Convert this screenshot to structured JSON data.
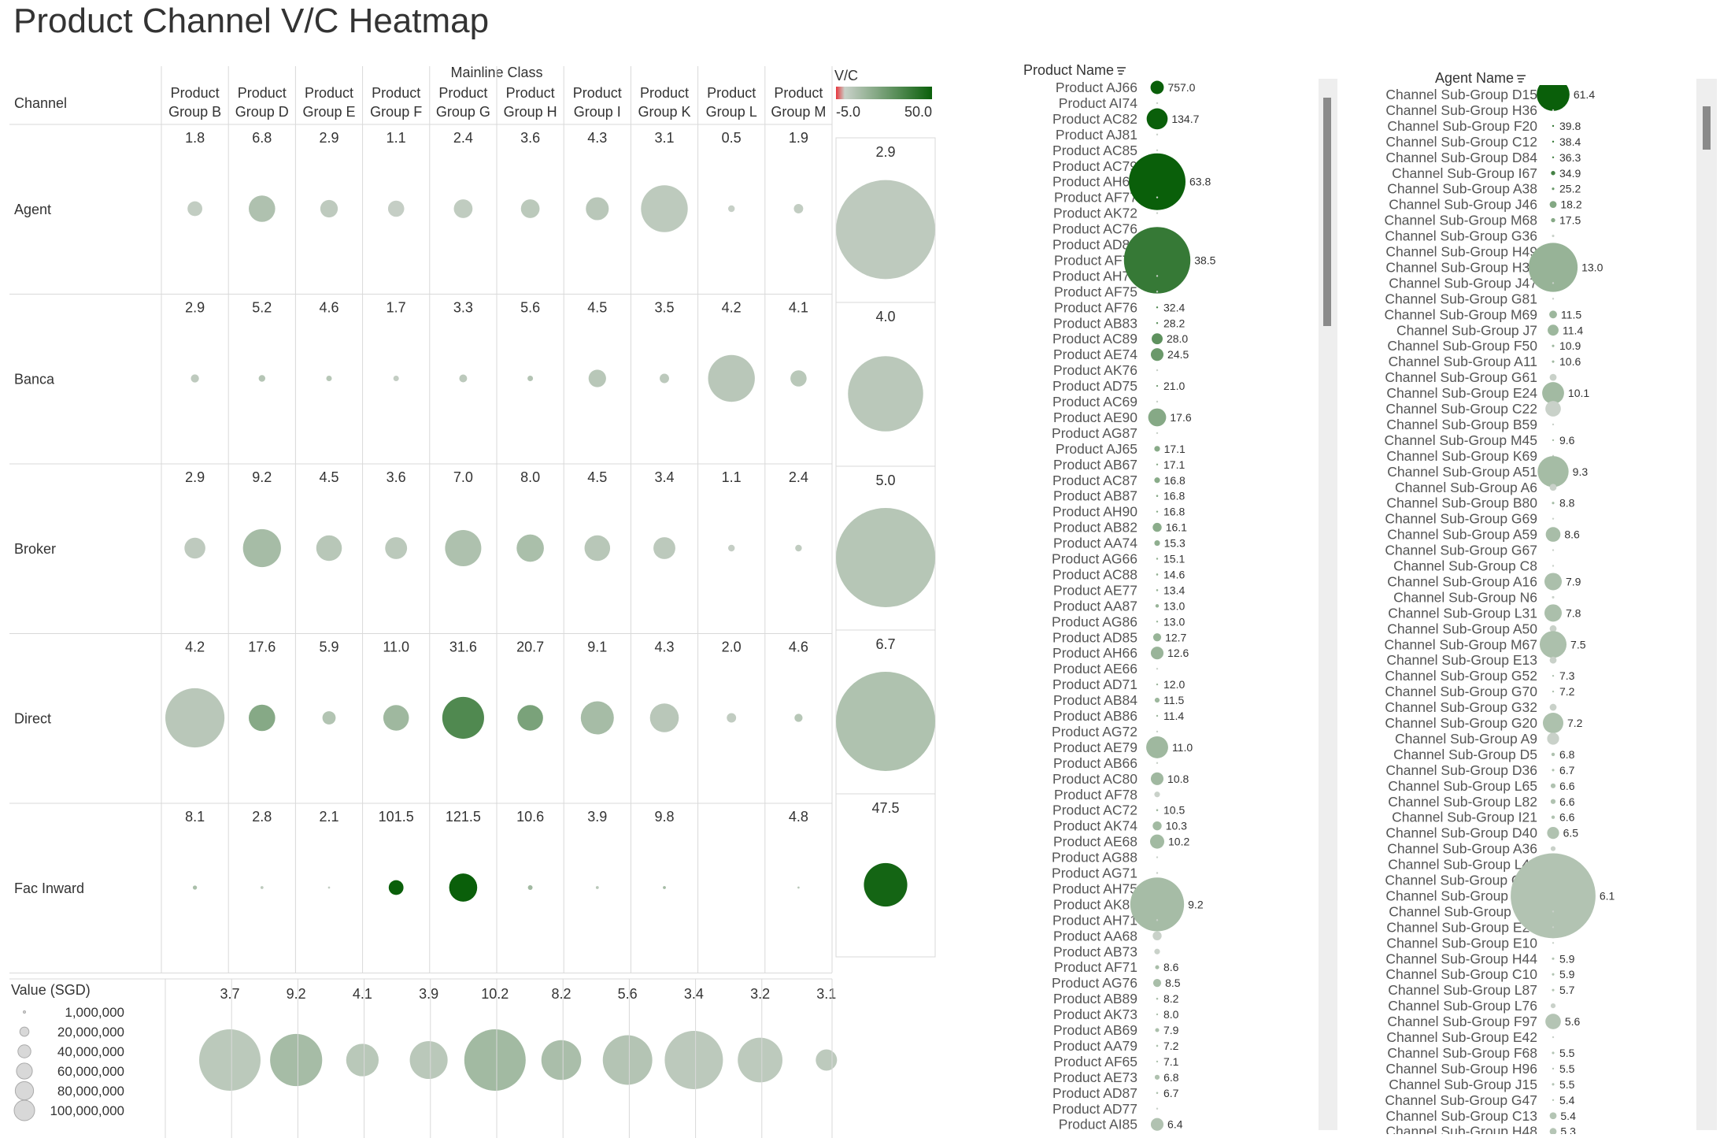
{
  "title": "Product Channel V/C Heatmap",
  "colors": {
    "negative": "#e8343c",
    "neutral": "#c9d1c9",
    "positive": "#0a5f0a",
    "grid": "#d9d9d9",
    "text": "#333333"
  },
  "chart_data": [
    {
      "type": "bubble-heatmap",
      "name": "channel-by-mainline-class",
      "column_header": "Mainline Class",
      "row_header": "Channel",
      "columns": [
        "Product Group B",
        "Product Group D",
        "Product Group E",
        "Product Group F",
        "Product Group G",
        "Product Group H",
        "Product Group I",
        "Product Group K",
        "Product Group L",
        "Product Group M"
      ],
      "rows": [
        "Agent",
        "Banca",
        "Broker",
        "Direct",
        "Fac Inward"
      ],
      "vc": [
        [
          1.8,
          6.8,
          2.9,
          1.1,
          2.4,
          3.6,
          4.3,
          3.1,
          0.5,
          1.9
        ],
        [
          2.9,
          5.2,
          4.6,
          1.7,
          3.3,
          5.6,
          4.5,
          3.5,
          4.2,
          4.1
        ],
        [
          2.9,
          9.2,
          4.5,
          3.6,
          7.0,
          8.0,
          4.5,
          3.4,
          1.1,
          2.4
        ],
        [
          4.2,
          17.6,
          5.9,
          11.0,
          31.6,
          20.7,
          9.1,
          4.3,
          2.0,
          4.6
        ],
        [
          8.1,
          2.8,
          2.1,
          101.5,
          121.5,
          10.6,
          3.9,
          9.8,
          null,
          4.8
        ]
      ],
      "value_sgd": [
        [
          5000000,
          16000000,
          7000000,
          6000000,
          8000000,
          8000000,
          12000000,
          50000000,
          1000000,
          2000000
        ],
        [
          1500000,
          1000000,
          700000,
          700000,
          1400000,
          700000,
          7000000,
          2000000,
          50000000,
          6000000
        ],
        [
          10000000,
          33000000,
          15000000,
          11000000,
          30000000,
          17000000,
          15000000,
          11000000,
          1000000,
          1000000
        ],
        [
          80000000,
          16000000,
          4000000,
          15000000,
          40000000,
          15000000,
          25000000,
          19000000,
          2000000,
          1500000
        ],
        [
          400000,
          200000,
          100000,
          5000000,
          18000000,
          500000,
          200000,
          200000,
          null,
          100000
        ]
      ],
      "row_totals": {
        "vc": [
          2.9,
          4.0,
          5.0,
          6.7,
          47.5
        ],
        "value_sgd": [
          260000000,
          150000000,
          330000000,
          460000000,
          50000000
        ]
      },
      "column_totals": {
        "vc": [
          3.7,
          9.2,
          4.1,
          3.9,
          10.2,
          8.2,
          5.6,
          3.4,
          3.2,
          3.1
        ],
        "value_sgd": [
          100000000,
          72000000,
          28000000,
          38000000,
          100000000,
          42000000,
          65000000,
          90000000,
          53000000,
          12000000
        ]
      },
      "color_legend": {
        "title": "V/C",
        "min": -5.0,
        "max": 50.0,
        "min_label": "-5.0",
        "max_label": "50.0"
      },
      "size_legend": {
        "title": "Value (SGD)",
        "values": [
          1000000,
          20000000,
          40000000,
          60000000,
          80000000,
          100000000
        ],
        "labels": [
          "1,000,000",
          "20,000,000",
          "40,000,000",
          "60,000,000",
          "80,000,000",
          "100,000,000"
        ]
      }
    },
    {
      "type": "bubble-list",
      "name": "product-name",
      "header": "Product Name",
      "items": [
        {
          "label": "Product AJ66",
          "vc": 757.0,
          "size": 22000000
        },
        {
          "label": "Product AI74",
          "vc": null,
          "size": 100000
        },
        {
          "label": "Product AC82",
          "vc": 134.7,
          "size": 55000000
        },
        {
          "label": "Product AJ81",
          "vc": null,
          "size": 100000
        },
        {
          "label": "Product AC85",
          "vc": null,
          "size": 100000
        },
        {
          "label": "Product AC79",
          "vc": null,
          "size": 100000
        },
        {
          "label": "Product AH68",
          "vc": 63.8,
          "size": 400000000
        },
        {
          "label": "Product AF77",
          "vc": null,
          "size": 100000
        },
        {
          "label": "Product AK72",
          "vc": null,
          "size": 100000
        },
        {
          "label": "Product AC76",
          "vc": null,
          "size": 100000
        },
        {
          "label": "Product AD80",
          "vc": null,
          "size": 100000
        },
        {
          "label": "Product AF79",
          "vc": 38.5,
          "size": 550000000
        },
        {
          "label": "Product AH70",
          "vc": null,
          "size": 100000
        },
        {
          "label": "Product AF75",
          "vc": null,
          "size": 100000
        },
        {
          "label": "Product AF76",
          "vc": 32.4,
          "size": 200000
        },
        {
          "label": "Product AB83",
          "vc": 28.2,
          "size": 100000
        },
        {
          "label": "Product AC89",
          "vc": 28.0,
          "size": 15000000
        },
        {
          "label": "Product AE74",
          "vc": 24.5,
          "size": 20000000
        },
        {
          "label": "Product AK76",
          "vc": null,
          "size": 100000
        },
        {
          "label": "Product AD75",
          "vc": 21.0,
          "size": 100000
        },
        {
          "label": "Product AC69",
          "vc": null,
          "size": 100000
        },
        {
          "label": "Product AE90",
          "vc": 17.6,
          "size": 40000000
        },
        {
          "label": "Product AG87",
          "vc": null,
          "size": 100000
        },
        {
          "label": "Product AJ65",
          "vc": 17.1,
          "size": 4000000
        },
        {
          "label": "Product AB67",
          "vc": 17.1,
          "size": 100000
        },
        {
          "label": "Product AC87",
          "vc": 16.8,
          "size": 4000000
        },
        {
          "label": "Product AB87",
          "vc": 16.8,
          "size": 500000
        },
        {
          "label": "Product AH90",
          "vc": 16.8,
          "size": 100000
        },
        {
          "label": "Product AB82",
          "vc": 16.1,
          "size": 10000000
        },
        {
          "label": "Product AA74",
          "vc": 15.3,
          "size": 4000000
        },
        {
          "label": "Product AG66",
          "vc": 15.1,
          "size": 100000
        },
        {
          "label": "Product AC88",
          "vc": 14.6,
          "size": 500000
        },
        {
          "label": "Product AE77",
          "vc": 13.4,
          "size": 500000
        },
        {
          "label": "Product AA87",
          "vc": 13.0,
          "size": 1500000
        },
        {
          "label": "Product AG86",
          "vc": 13.0,
          "size": 100000
        },
        {
          "label": "Product AD85",
          "vc": 12.7,
          "size": 8000000
        },
        {
          "label": "Product AH66",
          "vc": 12.6,
          "size": 20000000
        },
        {
          "label": "Product AE66",
          "vc": null,
          "size": 100000
        },
        {
          "label": "Product AD71",
          "vc": 12.0,
          "size": 400000
        },
        {
          "label": "Product AB84",
          "vc": 11.5,
          "size": 3000000
        },
        {
          "label": "Product AB86",
          "vc": 11.4,
          "size": 400000
        },
        {
          "label": "Product AG72",
          "vc": null,
          "size": 100000
        },
        {
          "label": "Product AE79",
          "vc": 11.0,
          "size": 60000000
        },
        {
          "label": "Product AB66",
          "vc": null,
          "size": 100000
        },
        {
          "label": "Product AC80",
          "vc": 10.8,
          "size": 20000000
        },
        {
          "label": "Product AF78",
          "vc": null,
          "size": 4000000
        },
        {
          "label": "Product AC72",
          "vc": 10.5,
          "size": 500000
        },
        {
          "label": "Product AK74",
          "vc": 10.3,
          "size": 10000000
        },
        {
          "label": "Product AE68",
          "vc": 10.2,
          "size": 25000000
        },
        {
          "label": "Product AG88",
          "vc": null,
          "size": 100000
        },
        {
          "label": "Product AG71",
          "vc": null,
          "size": 100000
        },
        {
          "label": "Product AH75",
          "vc": null,
          "size": 100000
        },
        {
          "label": "Product AK81",
          "vc": 9.2,
          "size": 360000000
        },
        {
          "label": "Product AH71",
          "vc": null,
          "size": 100000
        },
        {
          "label": "Product AA68",
          "vc": null,
          "size": 10000000
        },
        {
          "label": "Product AB73",
          "vc": null,
          "size": 4000000
        },
        {
          "label": "Product AF71",
          "vc": 8.6,
          "size": 2000000
        },
        {
          "label": "Product AG76",
          "vc": 8.5,
          "size": 8000000
        },
        {
          "label": "Product AB89",
          "vc": 8.2,
          "size": 500000
        },
        {
          "label": "Product AK73",
          "vc": 8.0,
          "size": 100000
        },
        {
          "label": "Product AB69",
          "vc": 7.9,
          "size": 2000000
        },
        {
          "label": "Product AA79",
          "vc": 7.2,
          "size": 500000
        },
        {
          "label": "Product AF65",
          "vc": 7.1,
          "size": 100000
        },
        {
          "label": "Product AE73",
          "vc": 6.8,
          "size": 3000000
        },
        {
          "label": "Product AD87",
          "vc": 6.7,
          "size": 500000
        },
        {
          "label": "Product AD77",
          "vc": null,
          "size": 100000
        },
        {
          "label": "Product AI85",
          "vc": 6.4,
          "size": 20000000
        }
      ]
    },
    {
      "type": "bubble-list",
      "name": "agent-name",
      "header": "Agent Name",
      "items": [
        {
          "label": "Channel Sub-Group D15",
          "vc": 61.4,
          "size": 90000000
        },
        {
          "label": "Channel Sub-Group H36",
          "vc": null,
          "size": 100000
        },
        {
          "label": "Channel Sub-Group F20",
          "vc": 39.8,
          "size": 100000
        },
        {
          "label": "Channel Sub-Group C12",
          "vc": 38.4,
          "size": 100000
        },
        {
          "label": "Channel Sub-Group D84",
          "vc": 36.3,
          "size": 100000
        },
        {
          "label": "Channel Sub-Group I67",
          "vc": 34.9,
          "size": 1500000
        },
        {
          "label": "Channel Sub-Group A38",
          "vc": 25.2,
          "size": 500000
        },
        {
          "label": "Channel Sub-Group J46",
          "vc": 18.2,
          "size": 4000000
        },
        {
          "label": "Channel Sub-Group M68",
          "vc": 17.5,
          "size": 1500000
        },
        {
          "label": "Channel Sub-Group G36",
          "vc": null,
          "size": 500000
        },
        {
          "label": "Channel Sub-Group H49",
          "vc": null,
          "size": 100000
        },
        {
          "label": "Channel Sub-Group H37",
          "vc": 13.0,
          "size": 200000000
        },
        {
          "label": "Channel Sub-Group J47",
          "vc": null,
          "size": 100000
        },
        {
          "label": "Channel Sub-Group G81",
          "vc": null,
          "size": 100000
        },
        {
          "label": "Channel Sub-Group M69",
          "vc": 11.5,
          "size": 5000000
        },
        {
          "label": "Channel Sub-Group J7",
          "vc": 11.4,
          "size": 10000000
        },
        {
          "label": "Channel Sub-Group F50",
          "vc": 10.9,
          "size": 500000
        },
        {
          "label": "Channel Sub-Group A11",
          "vc": 10.6,
          "size": 500000
        },
        {
          "label": "Channel Sub-Group G61",
          "vc": null,
          "size": 4000000
        },
        {
          "label": "Channel Sub-Group E24",
          "vc": 10.1,
          "size": 40000000
        },
        {
          "label": "Channel Sub-Group C22",
          "vc": null,
          "size": 20000000
        },
        {
          "label": "Channel Sub-Group B59",
          "vc": null,
          "size": 100000
        },
        {
          "label": "Channel Sub-Group M45",
          "vc": 9.6,
          "size": 100000
        },
        {
          "label": "Channel Sub-Group K69",
          "vc": null,
          "size": 100000
        },
        {
          "label": "Channel Sub-Group A51",
          "vc": 9.3,
          "size": 80000000
        },
        {
          "label": "Channel Sub-Group A6",
          "vc": null,
          "size": 4000000
        },
        {
          "label": "Channel Sub-Group B80",
          "vc": 8.8,
          "size": 500000
        },
        {
          "label": "Channel Sub-Group G69",
          "vc": null,
          "size": 100000
        },
        {
          "label": "Channel Sub-Group A59",
          "vc": 8.6,
          "size": 18000000
        },
        {
          "label": "Channel Sub-Group G67",
          "vc": null,
          "size": 100000
        },
        {
          "label": "Channel Sub-Group C8",
          "vc": null,
          "size": 100000
        },
        {
          "label": "Channel Sub-Group A16",
          "vc": 7.9,
          "size": 25000000
        },
        {
          "label": "Channel Sub-Group N6",
          "vc": null,
          "size": 500000
        },
        {
          "label": "Channel Sub-Group L31",
          "vc": 7.8,
          "size": 25000000
        },
        {
          "label": "Channel Sub-Group A50",
          "vc": null,
          "size": 4000000
        },
        {
          "label": "Channel Sub-Group M67",
          "vc": 7.5,
          "size": 60000000
        },
        {
          "label": "Channel Sub-Group E13",
          "vc": null,
          "size": 4000000
        },
        {
          "label": "Channel Sub-Group G52",
          "vc": 7.3,
          "size": 100000
        },
        {
          "label": "Channel Sub-Group G70",
          "vc": 7.2,
          "size": 100000
        },
        {
          "label": "Channel Sub-Group G32",
          "vc": null,
          "size": 4000000
        },
        {
          "label": "Channel Sub-Group G20",
          "vc": 7.2,
          "size": 35000000
        },
        {
          "label": "Channel Sub-Group A9",
          "vc": null,
          "size": 12000000
        },
        {
          "label": "Channel Sub-Group D5",
          "vc": 6.8,
          "size": 1000000
        },
        {
          "label": "Channel Sub-Group D36",
          "vc": 6.7,
          "size": 500000
        },
        {
          "label": "Channel Sub-Group L65",
          "vc": 6.6,
          "size": 2000000
        },
        {
          "label": "Channel Sub-Group L82",
          "vc": 6.6,
          "size": 2000000
        },
        {
          "label": "Channel Sub-Group I21",
          "vc": 6.6,
          "size": 1000000
        },
        {
          "label": "Channel Sub-Group D40",
          "vc": 6.5,
          "size": 12000000
        },
        {
          "label": "Channel Sub-Group A36",
          "vc": null,
          "size": 2000000
        },
        {
          "label": "Channel Sub-Group L40",
          "vc": null,
          "size": 100000
        },
        {
          "label": "Channel Sub-Group G49",
          "vc": null,
          "size": 100000
        },
        {
          "label": "Channel Sub-Group C82",
          "vc": 6.1,
          "size": 600000000
        },
        {
          "label": "Channel Sub-Group J89",
          "vc": null,
          "size": 100000
        },
        {
          "label": "Channel Sub-Group E20",
          "vc": null,
          "size": 100000
        },
        {
          "label": "Channel Sub-Group E10",
          "vc": null,
          "size": 100000
        },
        {
          "label": "Channel Sub-Group H44",
          "vc": 5.9,
          "size": 500000
        },
        {
          "label": "Channel Sub-Group C10",
          "vc": 5.9,
          "size": 500000
        },
        {
          "label": "Channel Sub-Group L87",
          "vc": 5.7,
          "size": 500000
        },
        {
          "label": "Channel Sub-Group L76",
          "vc": null,
          "size": 2000000
        },
        {
          "label": "Channel Sub-Group F97",
          "vc": 5.6,
          "size": 20000000
        },
        {
          "label": "Channel Sub-Group E42",
          "vc": null,
          "size": 100000
        },
        {
          "label": "Channel Sub-Group F68",
          "vc": 5.5,
          "size": 500000
        },
        {
          "label": "Channel Sub-Group H96",
          "vc": 5.5,
          "size": 100000
        },
        {
          "label": "Channel Sub-Group J15",
          "vc": 5.5,
          "size": 500000
        },
        {
          "label": "Channel Sub-Group G47",
          "vc": 5.4,
          "size": 100000
        },
        {
          "label": "Channel Sub-Group C13",
          "vc": 5.4,
          "size": 4000000
        },
        {
          "label": "Channel Sub-Group H48",
          "vc": 5.3,
          "size": 4000000
        }
      ]
    }
  ]
}
